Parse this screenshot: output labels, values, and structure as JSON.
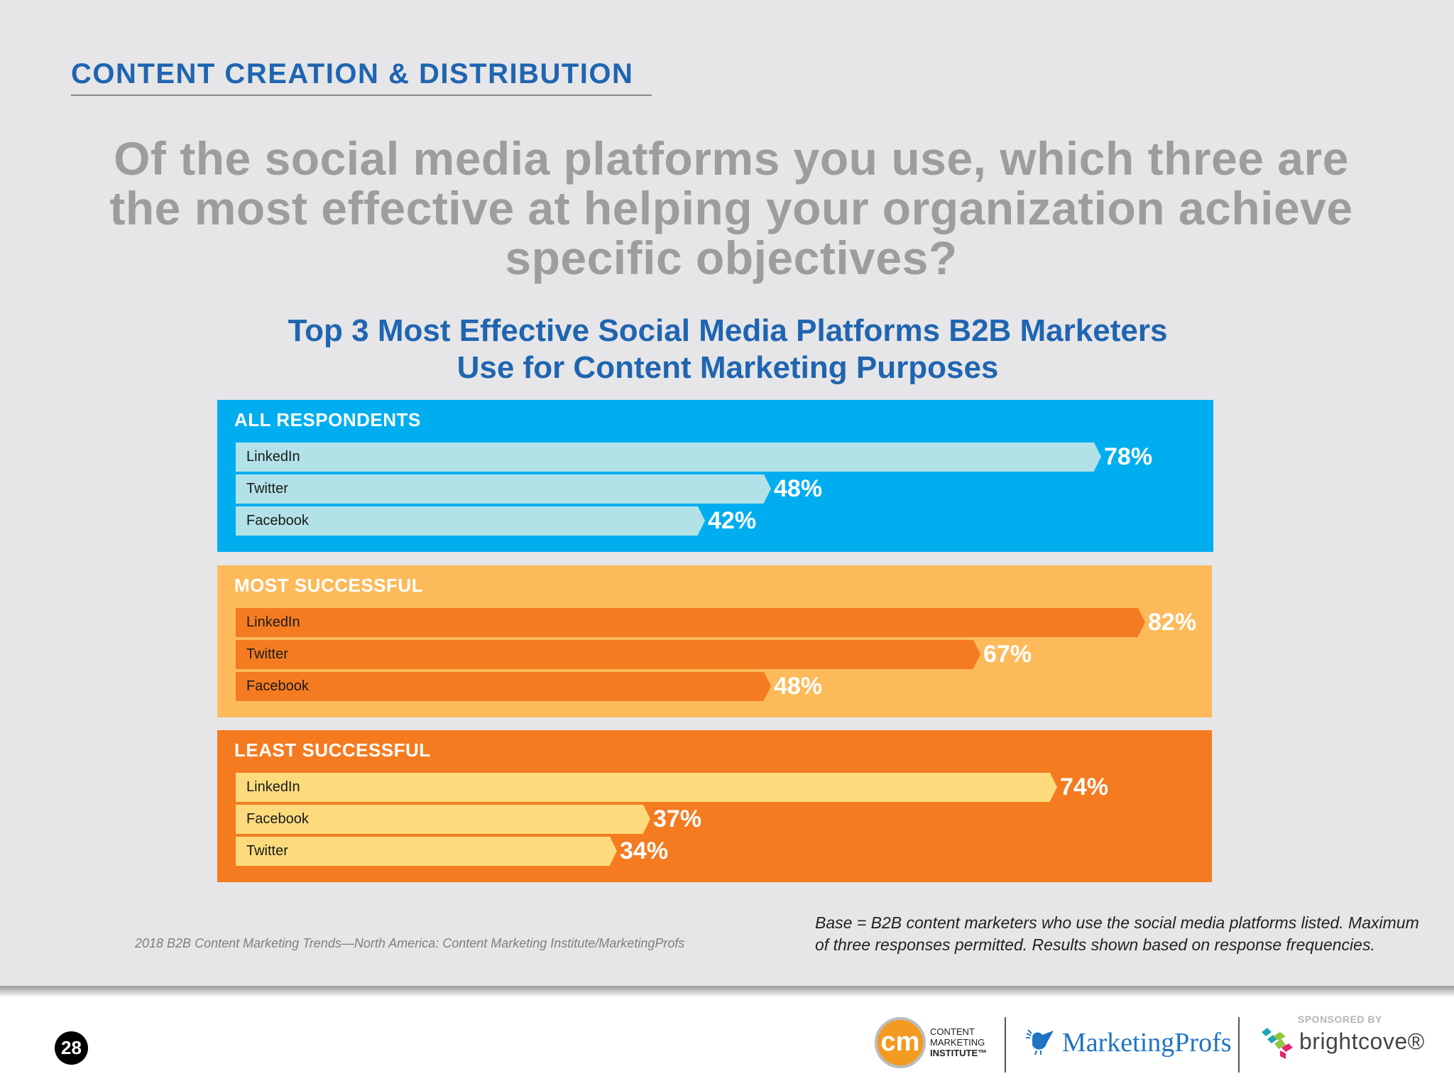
{
  "header": {
    "section_title": "CONTENT CREATION & DISTRIBUTION",
    "question": "Of the social media platforms you use, which three are the most effective at helping your organization achieve specific objectives?"
  },
  "chart": {
    "title_line1": "Top 3 Most Effective Social Media Platforms B2B Marketers",
    "title_line2": "Use for Content Marketing Purposes"
  },
  "panels": [
    {
      "label": "ALL RESPONDENTS",
      "bg": "#00aeef",
      "bar_color": "#b2e2e8",
      "bars": [
        {
          "label": "LinkedIn",
          "value": 78,
          "display": "78%"
        },
        {
          "label": "Twitter",
          "value": 48,
          "display": "48%"
        },
        {
          "label": "Facebook",
          "value": 42,
          "display": "42%"
        }
      ]
    },
    {
      "label": "MOST SUCCESSFUL",
      "bg": "#fcba5a",
      "bar_color": "#f47b20",
      "bars": [
        {
          "label": "LinkedIn",
          "value": 82,
          "display": "82%"
        },
        {
          "label": "Twitter",
          "value": 67,
          "display": "67%"
        },
        {
          "label": "Facebook",
          "value": 48,
          "display": "48%"
        }
      ]
    },
    {
      "label": "LEAST SUCCESSFUL",
      "bg": "#f47b20",
      "bar_color": "#fddb7c",
      "bars": [
        {
          "label": "LinkedIn",
          "value": 74,
          "display": "74%"
        },
        {
          "label": "Facebook",
          "value": 37,
          "display": "37%"
        },
        {
          "label": "Twitter",
          "value": 34,
          "display": "34%"
        }
      ]
    }
  ],
  "chart_data": {
    "type": "bar",
    "orientation": "horizontal",
    "title": "Top 3 Most Effective Social Media Platforms B2B Marketers Use for Content Marketing Purposes",
    "unit": "%",
    "groups": [
      {
        "name": "ALL RESPONDENTS",
        "categories": [
          "LinkedIn",
          "Twitter",
          "Facebook"
        ],
        "values": [
          78,
          48,
          42
        ]
      },
      {
        "name": "MOST SUCCESSFUL",
        "categories": [
          "LinkedIn",
          "Twitter",
          "Facebook"
        ],
        "values": [
          82,
          67,
          48
        ]
      },
      {
        "name": "LEAST SUCCESSFUL",
        "categories": [
          "LinkedIn",
          "Facebook",
          "Twitter"
        ],
        "values": [
          74,
          37,
          34
        ]
      }
    ],
    "xlabel": "",
    "ylabel": "",
    "xlim": [
      0,
      100
    ],
    "grid": false,
    "legend": "none"
  },
  "footer": {
    "source": "2018 B2B Content Marketing Trends—North America: Content Marketing Institute/MarketingProfs",
    "base_note": "Base = B2B content marketers who use the social media platforms listed. Maximum of three responses permitted. Results shown based on response frequencies.",
    "page_number": "28",
    "cmi_logo_mark": "cm",
    "cmi_line1": "CONTENT",
    "cmi_line2": "MARKETING",
    "cmi_line3": "INSTITUTE™",
    "marketingprofs": "MarketingProfs",
    "sponsored_by": "SPONSORED BY",
    "brightcove": "brightcove®"
  }
}
